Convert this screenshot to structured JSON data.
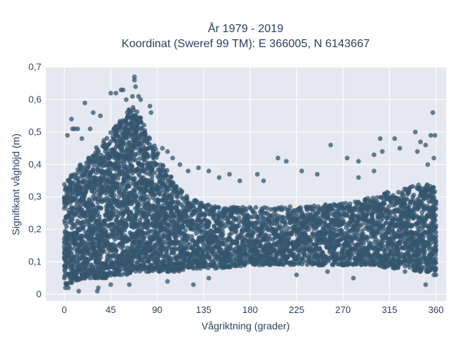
{
  "chart_data": {
    "type": "scatter",
    "title_line1": "År 1979 - 2019",
    "title_line2": "Koordinat (Sweref 99 TM): E 366005, N 6143667",
    "xlabel": "Vågriktning (grader)",
    "ylabel": "Signifikant våghöjd (m)",
    "xlim": [
      -18,
      370
    ],
    "ylim": [
      -0.02,
      0.7
    ],
    "x_ticks": [
      0,
      45,
      90,
      135,
      180,
      225,
      270,
      315,
      360
    ],
    "x_tick_labels": [
      "0",
      "45",
      "90",
      "135",
      "180",
      "225",
      "270",
      "315",
      "360"
    ],
    "y_ticks": [
      0,
      0.1,
      0.2,
      0.3,
      0.4,
      0.5,
      0.6,
      0.7
    ],
    "y_tick_labels": [
      "0",
      "0,1",
      "0,2",
      "0,3",
      "0,4",
      "0,5",
      "0,6",
      "0,7"
    ],
    "grid": true,
    "legend": false,
    "marker_color": "#34566d",
    "plot_bg": "#e5e8f0",
    "density_envelope": {
      "x": [
        0,
        5,
        10,
        20,
        30,
        40,
        50,
        60,
        65,
        70,
        80,
        90,
        100,
        110,
        120,
        135,
        150,
        180,
        225,
        270,
        300,
        315,
        330,
        345,
        355,
        360
      ],
      "y_low": [
        0.03,
        0.03,
        0.04,
        0.05,
        0.05,
        0.05,
        0.06,
        0.06,
        0.07,
        0.07,
        0.07,
        0.07,
        0.07,
        0.07,
        0.08,
        0.08,
        0.08,
        0.09,
        0.09,
        0.09,
        0.09,
        0.08,
        0.08,
        0.07,
        0.07,
        0.07
      ],
      "y_high": [
        0.34,
        0.36,
        0.38,
        0.42,
        0.45,
        0.48,
        0.52,
        0.56,
        0.58,
        0.57,
        0.5,
        0.44,
        0.38,
        0.33,
        0.3,
        0.28,
        0.27,
        0.27,
        0.27,
        0.28,
        0.3,
        0.32,
        0.33,
        0.34,
        0.34,
        0.34
      ]
    },
    "outliers": [
      {
        "x": 68,
        "y": 0.67
      },
      {
        "x": 68,
        "y": 0.66
      },
      {
        "x": 69,
        "y": 0.64
      },
      {
        "x": 55,
        "y": 0.63
      },
      {
        "x": 57,
        "y": 0.63
      },
      {
        "x": 50,
        "y": 0.62
      },
      {
        "x": 45,
        "y": 0.62
      },
      {
        "x": 66,
        "y": 0.61
      },
      {
        "x": 72,
        "y": 0.61
      },
      {
        "x": 74,
        "y": 0.6
      },
      {
        "x": 20,
        "y": 0.59
      },
      {
        "x": 60,
        "y": 0.6
      },
      {
        "x": 83,
        "y": 0.58
      },
      {
        "x": 28,
        "y": 0.56
      },
      {
        "x": 35,
        "y": 0.55
      },
      {
        "x": 84,
        "y": 0.56
      },
      {
        "x": 7,
        "y": 0.54
      },
      {
        "x": 25,
        "y": 0.51
      },
      {
        "x": 3,
        "y": 0.49
      },
      {
        "x": 8,
        "y": 0.51
      },
      {
        "x": 10,
        "y": 0.51
      },
      {
        "x": 13,
        "y": 0.51
      },
      {
        "x": 17,
        "y": 0.48
      },
      {
        "x": 95,
        "y": 0.45
      },
      {
        "x": 100,
        "y": 0.44
      },
      {
        "x": 105,
        "y": 0.42
      },
      {
        "x": 112,
        "y": 0.4
      },
      {
        "x": 120,
        "y": 0.38
      },
      {
        "x": 130,
        "y": 0.39
      },
      {
        "x": 140,
        "y": 0.38
      },
      {
        "x": 150,
        "y": 0.36
      },
      {
        "x": 160,
        "y": 0.37
      },
      {
        "x": 170,
        "y": 0.35
      },
      {
        "x": 187,
        "y": 0.37
      },
      {
        "x": 193,
        "y": 0.35
      },
      {
        "x": 207,
        "y": 0.42
      },
      {
        "x": 215,
        "y": 0.41
      },
      {
        "x": 230,
        "y": 0.38
      },
      {
        "x": 245,
        "y": 0.37
      },
      {
        "x": 258,
        "y": 0.46
      },
      {
        "x": 274,
        "y": 0.42
      },
      {
        "x": 285,
        "y": 0.41
      },
      {
        "x": 300,
        "y": 0.43
      },
      {
        "x": 306,
        "y": 0.48
      },
      {
        "x": 320,
        "y": 0.48
      },
      {
        "x": 308,
        "y": 0.44
      },
      {
        "x": 325,
        "y": 0.45
      },
      {
        "x": 340,
        "y": 0.5
      },
      {
        "x": 345,
        "y": 0.47
      },
      {
        "x": 350,
        "y": 0.46
      },
      {
        "x": 355,
        "y": 0.49
      },
      {
        "x": 357,
        "y": 0.56
      },
      {
        "x": 359,
        "y": 0.49
      },
      {
        "x": 342,
        "y": 0.44
      },
      {
        "x": 352,
        "y": 0.4
      },
      {
        "x": 358,
        "y": 0.42
      },
      {
        "x": 300,
        "y": 0.38
      },
      {
        "x": 285,
        "y": 0.36
      },
      {
        "x": 1,
        "y": 0.02
      },
      {
        "x": 4,
        "y": 0.02
      },
      {
        "x": 14,
        "y": 0.01
      },
      {
        "x": 32,
        "y": 0.01
      },
      {
        "x": 33,
        "y": 0.02
      },
      {
        "x": 45,
        "y": 0.03
      },
      {
        "x": 63,
        "y": 0.03
      },
      {
        "x": 100,
        "y": 0.04
      },
      {
        "x": 125,
        "y": 0.03
      },
      {
        "x": 140,
        "y": 0.05
      },
      {
        "x": 225,
        "y": 0.06
      },
      {
        "x": 255,
        "y": 0.07
      },
      {
        "x": 280,
        "y": 0.05
      },
      {
        "x": 330,
        "y": 0.07
      },
      {
        "x": 350,
        "y": 0.03
      },
      {
        "x": 358,
        "y": 0.06
      },
      {
        "x": 360,
        "y": 0.06
      }
    ]
  }
}
